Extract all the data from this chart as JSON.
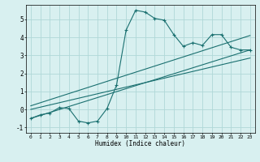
{
  "xlabel": "Humidex (Indice chaleur)",
  "ylabel": "",
  "background_color": "#d8f0f0",
  "grid_color": "#b0d8d8",
  "line_color": "#1a7070",
  "xlim": [
    -0.5,
    23.5
  ],
  "ylim": [
    -1.3,
    5.8
  ],
  "xticks": [
    0,
    1,
    2,
    3,
    4,
    5,
    6,
    7,
    8,
    9,
    10,
    11,
    12,
    13,
    14,
    15,
    16,
    17,
    18,
    19,
    20,
    21,
    22,
    23
  ],
  "yticks": [
    -1,
    0,
    1,
    2,
    3,
    4,
    5
  ],
  "main_x": [
    0,
    1,
    2,
    3,
    4,
    5,
    6,
    7,
    8,
    9,
    10,
    11,
    12,
    13,
    14,
    15,
    16,
    17,
    18,
    19,
    20,
    21,
    22,
    23
  ],
  "main_y": [
    -0.5,
    -0.3,
    -0.2,
    0.1,
    0.05,
    -0.65,
    -0.75,
    -0.65,
    0.05,
    1.35,
    4.4,
    5.5,
    5.4,
    5.05,
    4.95,
    4.15,
    3.5,
    3.7,
    3.55,
    4.15,
    4.15,
    3.45,
    3.3,
    3.3
  ],
  "trend1_x": [
    0,
    23
  ],
  "trend1_y": [
    -0.5,
    3.3
  ],
  "trend2_x": [
    0,
    23
  ],
  "trend2_y": [
    0.0,
    2.85
  ],
  "trend3_x": [
    0,
    23
  ],
  "trend3_y": [
    0.2,
    4.1
  ]
}
